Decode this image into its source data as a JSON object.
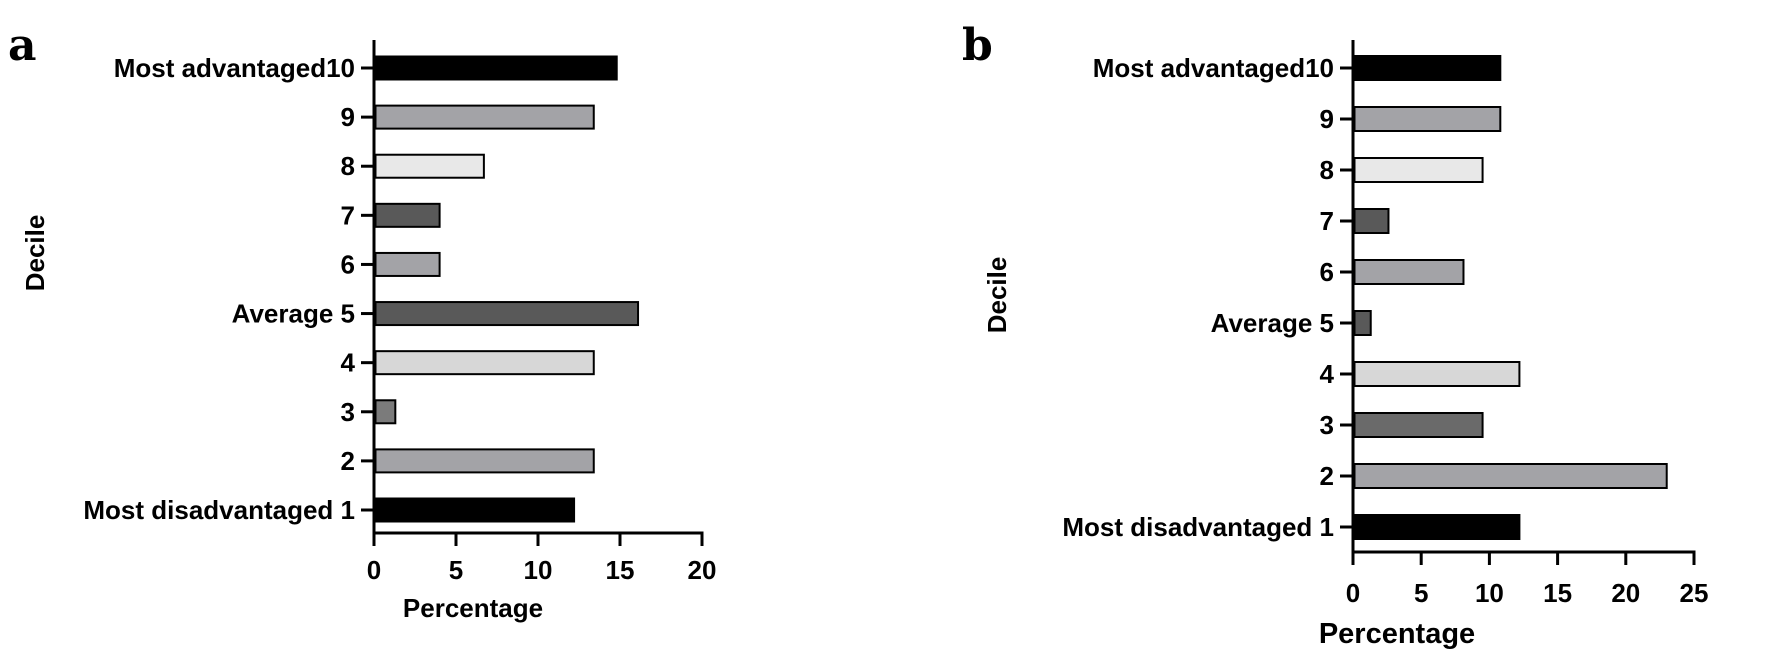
{
  "chart_data": [
    {
      "panel": "a",
      "type": "bar",
      "orientation": "horizontal",
      "categories": [
        "Most disadvantaged 1",
        "2",
        "3",
        "4",
        "Average 5",
        "6",
        "7",
        "8",
        "9",
        "Most advantaged10"
      ],
      "values": [
        12.2,
        13.4,
        1.3,
        13.4,
        16.1,
        4.0,
        4.0,
        6.7,
        13.4,
        14.8
      ],
      "colors": [
        "#000000",
        "#a3a3a7",
        "#7b7b7b",
        "#d7d7d7",
        "#595959",
        "#a3a3a7",
        "#595959",
        "#e8e8e8",
        "#a3a3a7",
        "#000000"
      ],
      "xlabel": "Percentage",
      "ylabel": "Decile",
      "xlim": [
        0,
        20
      ],
      "xticks": [
        "0",
        "5",
        "10",
        "15",
        "20"
      ],
      "grid": false
    },
    {
      "panel": "b",
      "type": "bar",
      "orientation": "horizontal",
      "categories": [
        "Most disadvantaged 1",
        "2",
        "3",
        "4",
        "Average 5",
        "6",
        "7",
        "8",
        "9",
        "Most advantaged10"
      ],
      "values": [
        12.2,
        23.0,
        9.5,
        12.2,
        1.3,
        8.1,
        2.6,
        9.5,
        10.8,
        10.8
      ],
      "colors": [
        "#000000",
        "#a3a3a7",
        "#6a6a6a",
        "#d7d7d7",
        "#595959",
        "#a3a3a7",
        "#595959",
        "#e8e8e8",
        "#a3a3a7",
        "#000000"
      ],
      "xlabel": "Percentage",
      "ylabel": "Decile",
      "xlim": [
        0,
        25
      ],
      "xticks": [
        "0",
        "5",
        "10",
        "15",
        "20",
        "25"
      ],
      "grid": false
    }
  ]
}
